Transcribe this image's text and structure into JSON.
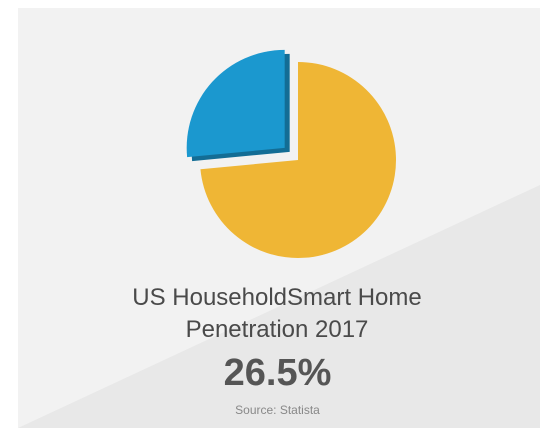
{
  "chart_data": {
    "type": "pie",
    "title": "US HouseholdSmart Home Penetration 2017",
    "categories": [
      null,
      null
    ],
    "values": [
      26.5,
      73.5
    ],
    "value_labels": [
      "26.5%",
      null
    ],
    "colors": [
      "#1b98cf",
      "#efb635"
    ],
    "source": "Source: Statista"
  }
}
